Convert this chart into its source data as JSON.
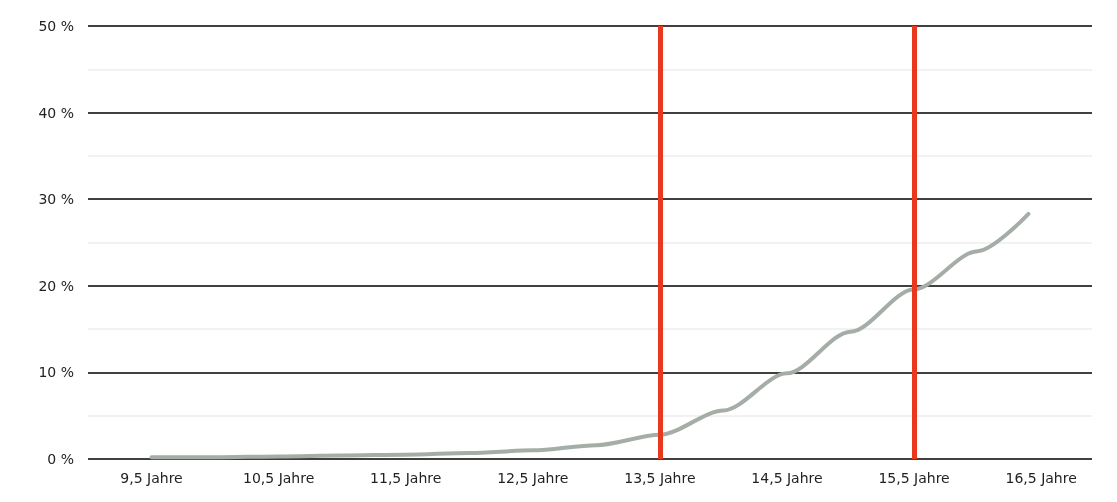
{
  "chart_data": {
    "type": "line",
    "x": [
      9.5,
      10.0,
      10.5,
      11.0,
      11.5,
      12.0,
      12.5,
      13.0,
      13.5,
      14.0,
      14.5,
      15.0,
      15.5,
      16.0,
      16.4
    ],
    "series": [
      {
        "color": "#a5aea6",
        "values": [
          0.2,
          0.2,
          0.3,
          0.4,
          0.5,
          0.7,
          1.0,
          1.6,
          2.8,
          5.6,
          9.9,
          14.7,
          19.6,
          24.0,
          28.3
        ]
      }
    ],
    "xlim": [
      9.0,
      16.9
    ],
    "xticks": [
      {
        "value": 9.5,
        "label": "9,5 Jahre"
      },
      {
        "value": 10.5,
        "label": "10,5 Jahre"
      },
      {
        "value": 11.5,
        "label": "11,5 Jahre"
      },
      {
        "value": 12.5,
        "label": "12,5 Jahre"
      },
      {
        "value": 13.5,
        "label": "13,5 Jahre"
      },
      {
        "value": 14.5,
        "label": "14,5 Jahre"
      },
      {
        "value": 15.5,
        "label": "15,5 Jahre"
      },
      {
        "value": 16.5,
        "label": "16,5 Jahre"
      }
    ],
    "ylim": [
      0,
      50
    ],
    "yticks": [
      {
        "value": 0,
        "label": "0 %"
      },
      {
        "value": 5,
        "label": null
      },
      {
        "value": 10,
        "label": "10 %"
      },
      {
        "value": 15,
        "label": null
      },
      {
        "value": 20,
        "label": "20 %"
      },
      {
        "value": 25,
        "label": null
      },
      {
        "value": 30,
        "label": "30 %"
      },
      {
        "value": 35,
        "label": null
      },
      {
        "value": 40,
        "label": "40 %"
      },
      {
        "value": 45,
        "label": null
      },
      {
        "value": 50,
        "label": "50 %"
      }
    ],
    "grid": "y",
    "marker": "none",
    "line_style": "solid",
    "ref_lines": [
      {
        "axis": "x",
        "value": 13.5,
        "color": "#e8391f"
      },
      {
        "axis": "x",
        "value": 15.5,
        "color": "#e8391f"
      }
    ]
  }
}
